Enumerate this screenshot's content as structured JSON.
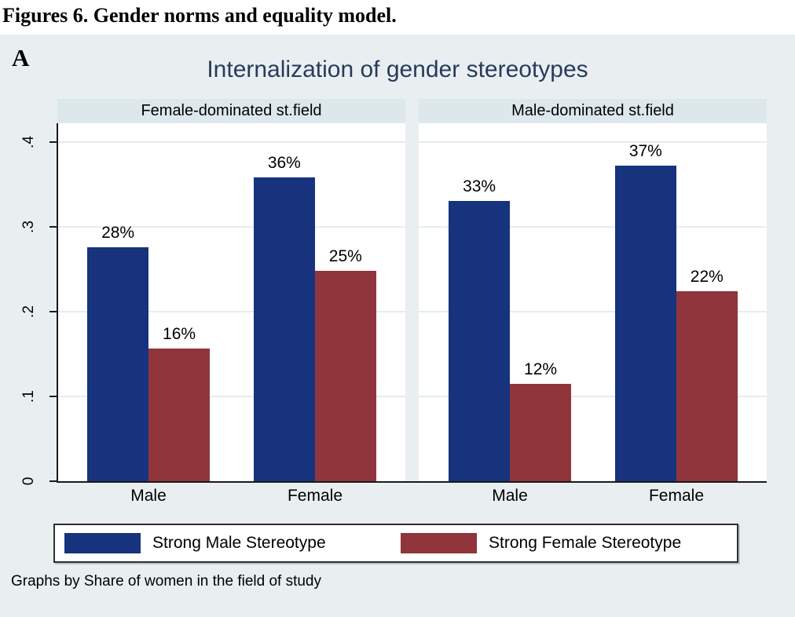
{
  "figure": {
    "caption": "Figures 6. Gender norms and equality model.",
    "panel_letter": "A"
  },
  "chart_data": {
    "type": "bar",
    "title": "Internalization of gender stereotypes",
    "note": "Graphs by Share of women in the field of study",
    "categories": [
      "Male",
      "Female"
    ],
    "series_names": [
      "Strong Male Stereotype",
      "Strong Female Stereotype"
    ],
    "panels": [
      {
        "label": "Female-dominated st.field",
        "groups": [
          {
            "category": "Male",
            "values": [
              0.276,
              0.156
            ],
            "labels": [
              "28%",
              "16%"
            ]
          },
          {
            "category": "Female",
            "values": [
              0.358,
              0.248
            ],
            "labels": [
              "36%",
              "25%"
            ]
          }
        ]
      },
      {
        "label": "Male-dominated st.field",
        "groups": [
          {
            "category": "Male",
            "values": [
              0.33,
              0.115
            ],
            "labels": [
              "33%",
              "12%"
            ]
          },
          {
            "category": "Female",
            "values": [
              0.372,
              0.224
            ],
            "labels": [
              "37%",
              "22%"
            ]
          }
        ]
      }
    ],
    "y_axis": {
      "tick_labels": [
        "0",
        ".1",
        ".2",
        ".3",
        ".4"
      ],
      "tick_values": [
        0,
        0.1,
        0.2,
        0.3,
        0.4
      ],
      "ylim": [
        0,
        0.422
      ]
    },
    "legend": {
      "position": "bottom",
      "entries": [
        {
          "label": "Strong Male Stereotype",
          "color": "#17337e"
        },
        {
          "label": "Strong Female Stereotype",
          "color": "#90353b"
        }
      ]
    },
    "grid": true,
    "layout": {
      "group_centers_pct": [
        26.2,
        74.0
      ],
      "bar_width_pct": 17.6
    }
  },
  "colors": {
    "navy": "#17337e",
    "maroon": "#90353b",
    "background": "#e9eff1",
    "panel_header_bg": "#dde8ec",
    "plot_bg": "#ffffff",
    "gridline": "#e5edf0",
    "title": "#283a5e",
    "axis": "#1a1a1a"
  }
}
